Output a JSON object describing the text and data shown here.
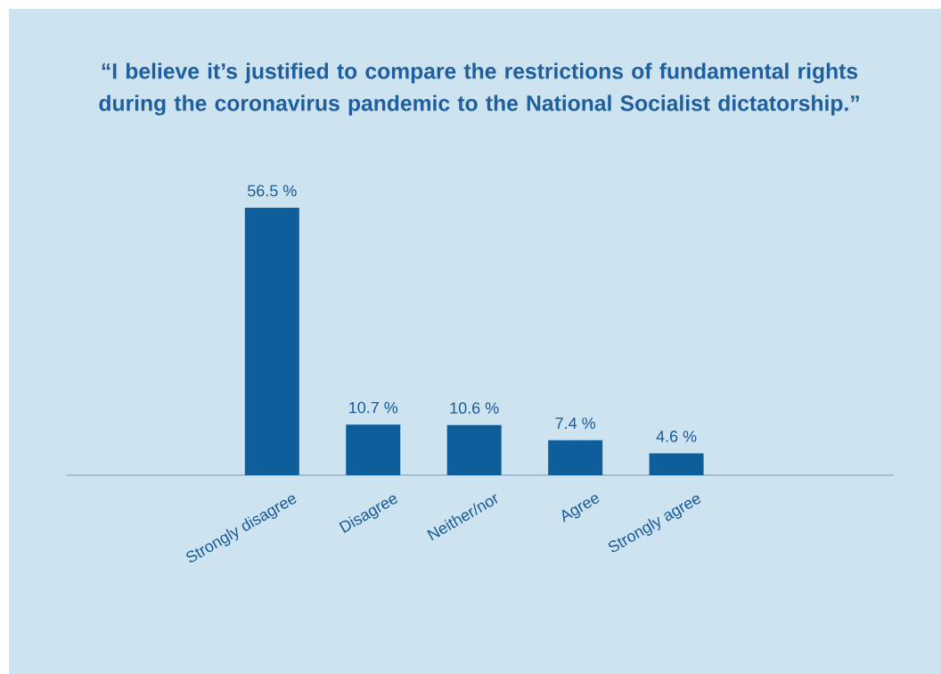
{
  "chart_data": {
    "type": "bar",
    "title": "“I believe it’s justified to compare the restrictions of fundamental rights during the coronavirus pandemic to the National Socialist dictatorship.”",
    "categories": [
      "Strongly disagree",
      "Disagree",
      "Neither/nor",
      "Agree",
      "Strongly agree"
    ],
    "values": [
      56.5,
      10.7,
      10.6,
      7.4,
      4.6
    ],
    "value_labels": [
      "56.5 %",
      "10.7 %",
      "10.6 %",
      "7.4 %",
      "4.6 %"
    ],
    "color": "#0f5e9c"
  }
}
